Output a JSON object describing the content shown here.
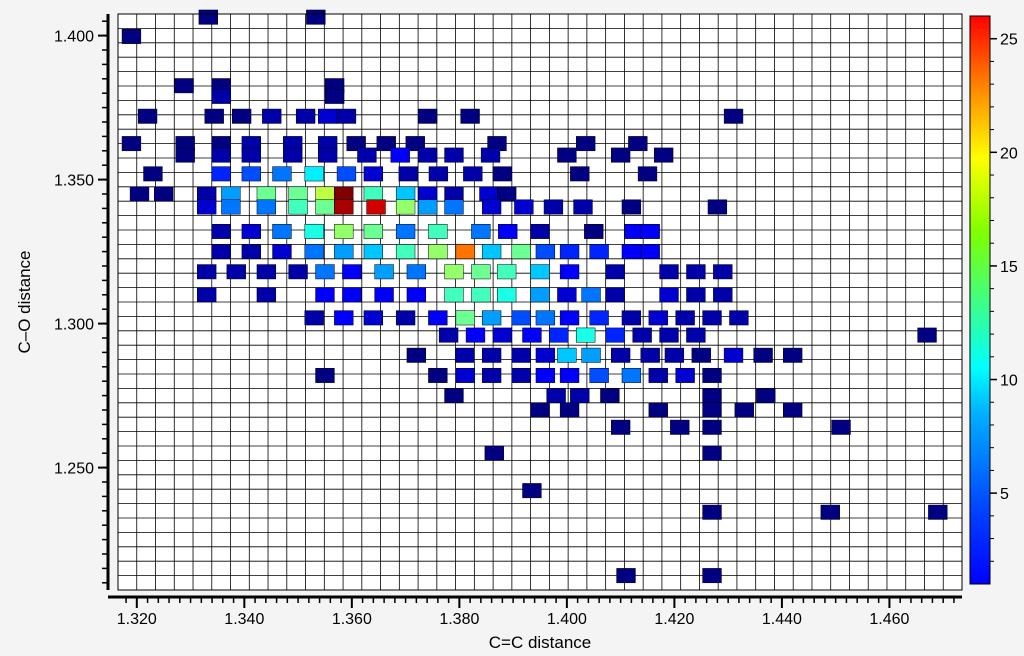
{
  "chart_data": {
    "type": "heatmap",
    "title": "",
    "xlabel": "C=C distance",
    "ylabel": "C–O distance",
    "xlim": [
      1.3165,
      1.4735
    ],
    "ylim": [
      1.2075,
      1.4075
    ],
    "x_bin_width": 0.0035,
    "y_bin_width": 0.005,
    "x_ticks": [
      1.32,
      1.34,
      1.36,
      1.38,
      1.4,
      1.42,
      1.44,
      1.46
    ],
    "x_tick_labels": [
      "1.320",
      "1.340",
      "1.360",
      "1.380",
      "1.400",
      "1.420",
      "1.440",
      "1.460"
    ],
    "y_ticks": [
      1.25,
      1.3,
      1.35,
      1.4
    ],
    "y_tick_labels": [
      "1.250",
      "1.300",
      "1.350",
      "1.400"
    ],
    "grid": true,
    "colorbar": {
      "min": 1,
      "max": 26,
      "ticks": [
        5,
        10,
        15,
        20,
        25
      ],
      "tick_labels": [
        "5",
        "10",
        "15",
        "20",
        "25"
      ],
      "colormap": "jet"
    },
    "cells": [
      [
        1.3333,
        1.4064,
        1
      ],
      [
        1.3533,
        1.4064,
        1
      ],
      [
        1.319,
        1.3997,
        1
      ],
      [
        1.3288,
        1.3826,
        1
      ],
      [
        1.3357,
        1.3826,
        1
      ],
      [
        1.3568,
        1.3826,
        1
      ],
      [
        1.3357,
        1.3789,
        2
      ],
      [
        1.3568,
        1.3789,
        1
      ],
      [
        1.322,
        1.372,
        1
      ],
      [
        1.3344,
        1.372,
        1
      ],
      [
        1.3395,
        1.372,
        1
      ],
      [
        1.3451,
        1.372,
        2
      ],
      [
        1.3514,
        1.372,
        2
      ],
      [
        1.3555,
        1.372,
        3
      ],
      [
        1.359,
        1.372,
        2
      ],
      [
        1.3741,
        1.372,
        1
      ],
      [
        1.382,
        1.372,
        1
      ],
      [
        1.431,
        1.372,
        1
      ],
      [
        1.319,
        1.3625,
        1
      ],
      [
        1.329,
        1.3625,
        1
      ],
      [
        1.3357,
        1.3625,
        1
      ],
      [
        1.3413,
        1.3625,
        2
      ],
      [
        1.349,
        1.3625,
        2
      ],
      [
        1.3555,
        1.3625,
        2
      ],
      [
        1.3608,
        1.3625,
        1
      ],
      [
        1.3664,
        1.3625,
        1
      ],
      [
        1.3718,
        1.3625,
        1
      ],
      [
        1.387,
        1.3625,
        1
      ],
      [
        1.4035,
        1.3625,
        1
      ],
      [
        1.4132,
        1.3625,
        1
      ],
      [
        1.329,
        1.3585,
        1
      ],
      [
        1.3357,
        1.3585,
        2
      ],
      [
        1.3413,
        1.3585,
        2
      ],
      [
        1.349,
        1.3585,
        2
      ],
      [
        1.3555,
        1.3585,
        2
      ],
      [
        1.3628,
        1.3585,
        2
      ],
      [
        1.369,
        1.3585,
        4
      ],
      [
        1.3741,
        1.3585,
        2
      ],
      [
        1.379,
        1.3585,
        2
      ],
      [
        1.3858,
        1.3585,
        2
      ],
      [
        1.4,
        1.3585,
        1
      ],
      [
        1.41,
        1.3585,
        1
      ],
      [
        1.418,
        1.3585,
        1
      ],
      [
        1.323,
        1.352,
        1
      ],
      [
        1.3357,
        1.352,
        5
      ],
      [
        1.3413,
        1.352,
        6
      ],
      [
        1.347,
        1.352,
        7
      ],
      [
        1.353,
        1.352,
        10
      ],
      [
        1.359,
        1.352,
        6
      ],
      [
        1.364,
        1.352,
        3
      ],
      [
        1.3705,
        1.352,
        2
      ],
      [
        1.3761,
        1.352,
        2
      ],
      [
        1.3825,
        1.352,
        2
      ],
      [
        1.388,
        1.352,
        1
      ],
      [
        1.4024,
        1.352,
        1
      ],
      [
        1.415,
        1.352,
        1
      ],
      [
        1.3205,
        1.345,
        1
      ],
      [
        1.325,
        1.345,
        1
      ],
      [
        1.333,
        1.345,
        2
      ],
      [
        1.3375,
        1.345,
        8
      ],
      [
        1.3441,
        1.345,
        13
      ],
      [
        1.35,
        1.345,
        13
      ],
      [
        1.355,
        1.345,
        15
      ],
      [
        1.3585,
        1.345,
        26
      ],
      [
        1.364,
        1.345,
        12
      ],
      [
        1.37,
        1.345,
        9
      ],
      [
        1.3741,
        1.345,
        3
      ],
      [
        1.379,
        1.345,
        2
      ],
      [
        1.3855,
        1.345,
        3
      ],
      [
        1.3888,
        1.345,
        1
      ],
      [
        1.333,
        1.3405,
        3
      ],
      [
        1.3375,
        1.3405,
        7
      ],
      [
        1.3441,
        1.3405,
        7
      ],
      [
        1.35,
        1.3405,
        12
      ],
      [
        1.355,
        1.3405,
        13
      ],
      [
        1.3585,
        1.3405,
        25
      ],
      [
        1.3645,
        1.3405,
        24
      ],
      [
        1.37,
        1.3405,
        14
      ],
      [
        1.3741,
        1.3405,
        8
      ],
      [
        1.379,
        1.3405,
        7
      ],
      [
        1.386,
        1.3405,
        3
      ],
      [
        1.392,
        1.3405,
        3
      ],
      [
        1.3975,
        1.3405,
        2
      ],
      [
        1.403,
        1.3405,
        2
      ],
      [
        1.412,
        1.3405,
        1
      ],
      [
        1.428,
        1.3405,
        1
      ],
      [
        1.3357,
        1.332,
        2
      ],
      [
        1.3413,
        1.332,
        3
      ],
      [
        1.347,
        1.332,
        7
      ],
      [
        1.353,
        1.332,
        11
      ],
      [
        1.3585,
        1.332,
        14
      ],
      [
        1.364,
        1.332,
        13
      ],
      [
        1.37,
        1.332,
        7
      ],
      [
        1.376,
        1.332,
        12
      ],
      [
        1.384,
        1.332,
        7
      ],
      [
        1.389,
        1.332,
        4
      ],
      [
        1.395,
        1.332,
        2
      ],
      [
        1.405,
        1.332,
        1
      ],
      [
        1.4125,
        1.332,
        4
      ],
      [
        1.4155,
        1.332,
        4
      ],
      [
        1.3357,
        1.325,
        2
      ],
      [
        1.3413,
        1.325,
        2
      ],
      [
        1.347,
        1.325,
        3
      ],
      [
        1.353,
        1.325,
        7
      ],
      [
        1.3585,
        1.325,
        8
      ],
      [
        1.364,
        1.325,
        9
      ],
      [
        1.37,
        1.325,
        12
      ],
      [
        1.376,
        1.325,
        14
      ],
      [
        1.3811,
        1.325,
        20
      ],
      [
        1.386,
        1.325,
        9
      ],
      [
        1.3915,
        1.325,
        13
      ],
      [
        1.396,
        1.325,
        6
      ],
      [
        1.4005,
        1.325,
        5
      ],
      [
        1.406,
        1.325,
        5
      ],
      [
        1.412,
        1.325,
        4
      ],
      [
        1.4155,
        1.325,
        4
      ],
      [
        1.333,
        1.318,
        2
      ],
      [
        1.3385,
        1.318,
        2
      ],
      [
        1.3441,
        1.318,
        2
      ],
      [
        1.35,
        1.318,
        2
      ],
      [
        1.355,
        1.318,
        7
      ],
      [
        1.36,
        1.318,
        4
      ],
      [
        1.366,
        1.318,
        8
      ],
      [
        1.372,
        1.318,
        7
      ],
      [
        1.379,
        1.318,
        14
      ],
      [
        1.384,
        1.318,
        13
      ],
      [
        1.3888,
        1.318,
        12
      ],
      [
        1.395,
        1.318,
        9
      ],
      [
        1.4005,
        1.318,
        4
      ],
      [
        1.409,
        1.318,
        2
      ],
      [
        1.419,
        1.318,
        2
      ],
      [
        1.424,
        1.318,
        2
      ],
      [
        1.429,
        1.318,
        2
      ],
      [
        1.333,
        1.31,
        2
      ],
      [
        1.3441,
        1.31,
        2
      ],
      [
        1.355,
        1.31,
        4
      ],
      [
        1.36,
        1.31,
        4
      ],
      [
        1.366,
        1.31,
        4
      ],
      [
        1.372,
        1.31,
        4
      ],
      [
        1.379,
        1.31,
        12
      ],
      [
        1.384,
        1.31,
        12
      ],
      [
        1.3888,
        1.31,
        11
      ],
      [
        1.395,
        1.31,
        8
      ],
      [
        1.4,
        1.31,
        3
      ],
      [
        1.4045,
        1.31,
        7
      ],
      [
        1.409,
        1.31,
        2
      ],
      [
        1.419,
        1.31,
        3
      ],
      [
        1.424,
        1.31,
        2
      ],
      [
        1.429,
        1.31,
        2
      ],
      [
        1.353,
        1.302,
        2
      ],
      [
        1.3585,
        1.302,
        4
      ],
      [
        1.364,
        1.302,
        3
      ],
      [
        1.37,
        1.302,
        2
      ],
      [
        1.376,
        1.302,
        4
      ],
      [
        1.3811,
        1.302,
        13
      ],
      [
        1.386,
        1.302,
        8
      ],
      [
        1.3915,
        1.302,
        6
      ],
      [
        1.396,
        1.302,
        7
      ],
      [
        1.4005,
        1.302,
        4
      ],
      [
        1.406,
        1.302,
        5
      ],
      [
        1.412,
        1.302,
        2
      ],
      [
        1.417,
        1.302,
        3
      ],
      [
        1.422,
        1.302,
        2
      ],
      [
        1.427,
        1.302,
        2
      ],
      [
        1.432,
        1.302,
        2
      ],
      [
        1.378,
        1.296,
        2
      ],
      [
        1.383,
        1.296,
        4
      ],
      [
        1.388,
        1.296,
        3
      ],
      [
        1.3935,
        1.296,
        4
      ],
      [
        1.3985,
        1.296,
        5
      ],
      [
        1.4035,
        1.296,
        11
      ],
      [
        1.409,
        1.296,
        5
      ],
      [
        1.414,
        1.296,
        2
      ],
      [
        1.419,
        1.296,
        2
      ],
      [
        1.424,
        1.296,
        2
      ],
      [
        1.467,
        1.296,
        1
      ],
      [
        1.372,
        1.289,
        1
      ],
      [
        1.381,
        1.289,
        2
      ],
      [
        1.386,
        1.289,
        2
      ],
      [
        1.3915,
        1.289,
        2
      ],
      [
        1.396,
        1.289,
        3
      ],
      [
        1.4,
        1.289,
        9
      ],
      [
        1.4045,
        1.289,
        8
      ],
      [
        1.41,
        1.289,
        2
      ],
      [
        1.4155,
        1.289,
        2
      ],
      [
        1.42,
        1.289,
        2
      ],
      [
        1.425,
        1.289,
        1
      ],
      [
        1.431,
        1.289,
        3
      ],
      [
        1.4365,
        1.289,
        1
      ],
      [
        1.442,
        1.289,
        1
      ],
      [
        1.355,
        1.282,
        1
      ],
      [
        1.376,
        1.282,
        1
      ],
      [
        1.3811,
        1.282,
        3
      ],
      [
        1.386,
        1.282,
        2
      ],
      [
        1.3915,
        1.282,
        2
      ],
      [
        1.396,
        1.282,
        4
      ],
      [
        1.4005,
        1.282,
        4
      ],
      [
        1.406,
        1.282,
        6
      ],
      [
        1.412,
        1.282,
        7
      ],
      [
        1.417,
        1.282,
        2
      ],
      [
        1.422,
        1.282,
        3
      ],
      [
        1.427,
        1.282,
        1
      ],
      [
        1.379,
        1.275,
        1
      ],
      [
        1.398,
        1.275,
        2
      ],
      [
        1.4024,
        1.275,
        2
      ],
      [
        1.408,
        1.275,
        1
      ],
      [
        1.427,
        1.275,
        1
      ],
      [
        1.437,
        1.275,
        1
      ],
      [
        1.395,
        1.27,
        1
      ],
      [
        1.4005,
        1.27,
        1
      ],
      [
        1.417,
        1.27,
        1
      ],
      [
        1.427,
        1.27,
        1
      ],
      [
        1.433,
        1.27,
        1
      ],
      [
        1.442,
        1.27,
        1
      ],
      [
        1.41,
        1.264,
        1
      ],
      [
        1.421,
        1.264,
        1
      ],
      [
        1.427,
        1.264,
        1
      ],
      [
        1.451,
        1.264,
        1
      ],
      [
        1.3865,
        1.255,
        1
      ],
      [
        1.427,
        1.255,
        1
      ],
      [
        1.3935,
        1.242,
        1
      ],
      [
        1.427,
        1.2345,
        1
      ],
      [
        1.449,
        1.2345,
        1
      ],
      [
        1.469,
        1.2345,
        1
      ],
      [
        1.411,
        1.2125,
        1
      ],
      [
        1.427,
        1.2125,
        1
      ]
    ]
  }
}
